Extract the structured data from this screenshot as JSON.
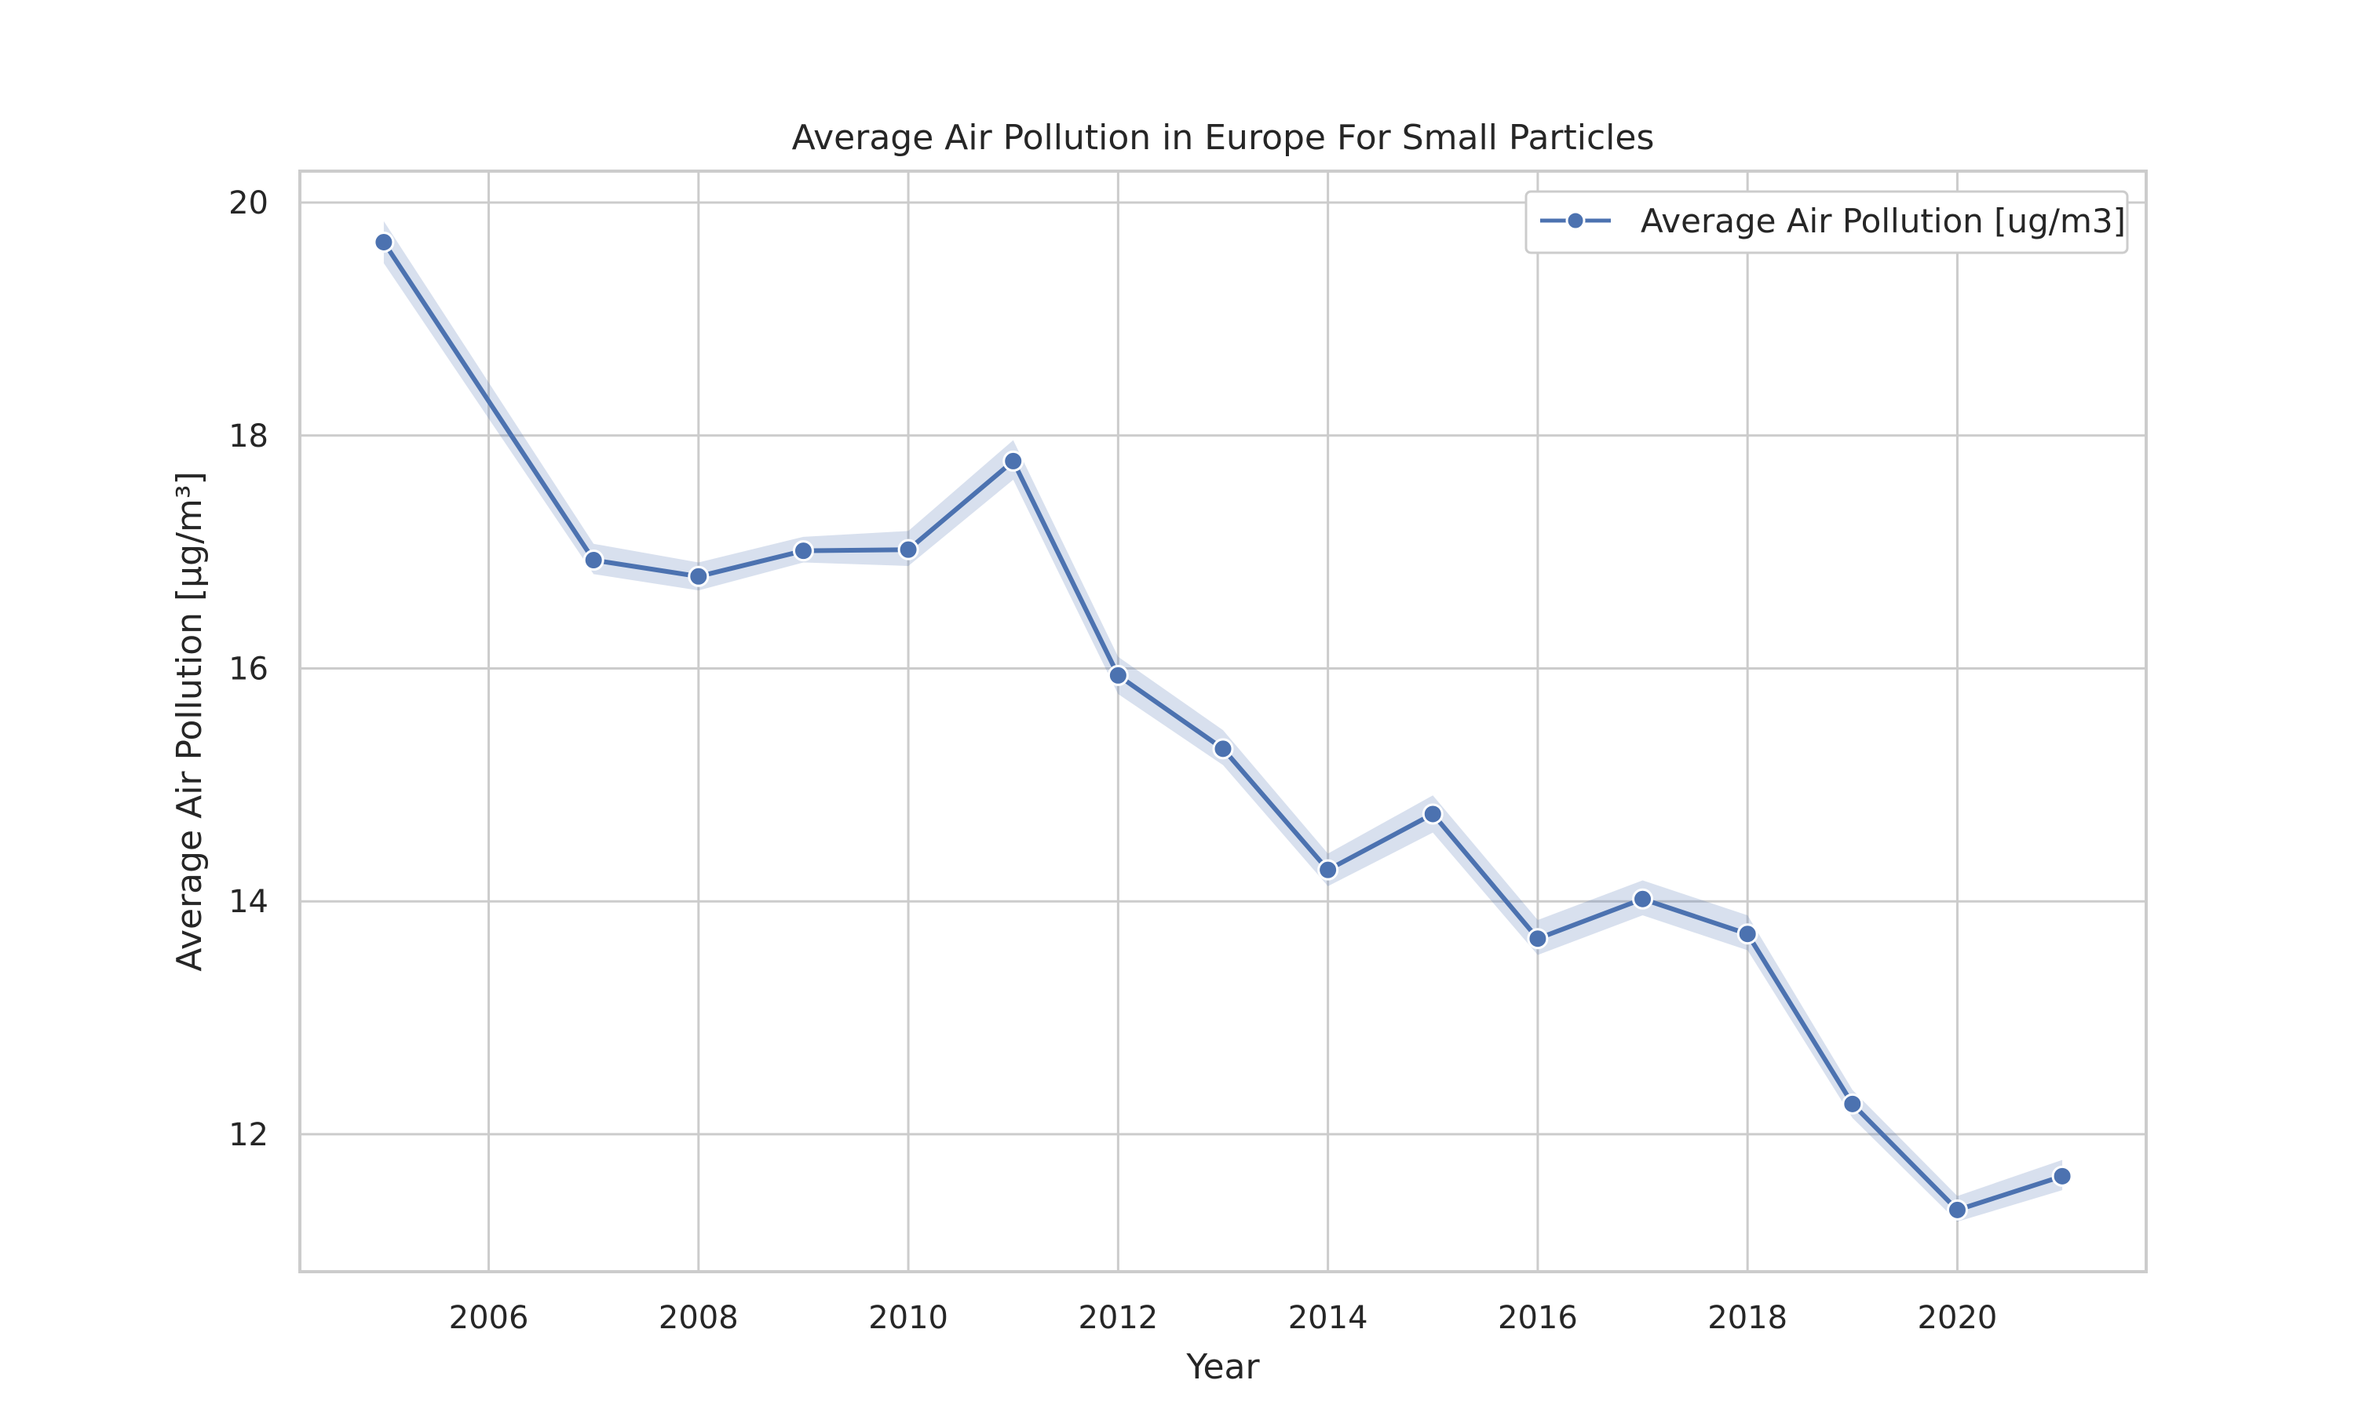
{
  "chart_data": {
    "type": "line",
    "title": "Average Air Pollution in Europe For Small Particles",
    "xlabel": "Year",
    "ylabel": "Average Air Pollution [µg/m³]",
    "xlim": [
      2004.2,
      2021.8
    ],
    "ylim": [
      10.82,
      20.27
    ],
    "x_ticks": [
      2006,
      2008,
      2010,
      2012,
      2014,
      2016,
      2018,
      2020
    ],
    "y_ticks": [
      12,
      14,
      16,
      18,
      20
    ],
    "grid": true,
    "legend_position": "top-right",
    "x": [
      2005,
      2007,
      2008,
      2009,
      2010,
      2011,
      2012,
      2013,
      2014,
      2015,
      2016,
      2017,
      2018,
      2019,
      2020,
      2021
    ],
    "series": [
      {
        "name": "Average Air Pollution [ug/m3]",
        "color": "#4c72b0",
        "band_color": "#4c72b0",
        "values": [
          19.66,
          16.93,
          16.79,
          17.01,
          17.02,
          17.78,
          15.94,
          15.31,
          14.27,
          14.75,
          13.68,
          14.02,
          13.72,
          12.26,
          11.35,
          11.64
        ],
        "lower": [
          19.48,
          16.81,
          16.67,
          16.91,
          16.88,
          17.62,
          15.78,
          15.17,
          14.13,
          14.59,
          13.54,
          13.88,
          13.58,
          12.14,
          11.25,
          11.52
        ],
        "upper": [
          19.84,
          17.07,
          16.91,
          17.13,
          17.18,
          17.96,
          16.1,
          15.47,
          14.41,
          14.91,
          13.84,
          14.18,
          13.88,
          12.38,
          11.47,
          11.78
        ]
      }
    ]
  }
}
